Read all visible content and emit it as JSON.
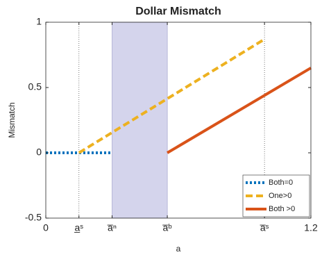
{
  "chart_data": {
    "type": "line",
    "title": "Dollar Mismatch",
    "x_label": "a",
    "y_label": "Mismatch",
    "xlim": [
      0,
      1.2
    ],
    "ylim": [
      -0.5,
      1
    ],
    "xticks": [
      0,
      {
        "value": 0.15,
        "label": "a̲ˢ"
      },
      {
        "value": 0.3,
        "label": "a̅ⁿ"
      },
      {
        "value": 0.55,
        "label": "a̅ᵇ"
      },
      {
        "value": 0.99,
        "label": "a̅ˢ"
      },
      1.2
    ],
    "yticks": [
      -0.5,
      0,
      0.5,
      1
    ],
    "shaded_region": [
      0.3,
      0.55
    ],
    "shade_color": "#d4d4ec",
    "reference_lines": [
      0.15,
      0.99
    ],
    "legend_position": "lower right",
    "series": [
      {
        "name": "Both=0",
        "color": "#0072bd",
        "style": "dotted",
        "x": [
          0,
          0.3
        ],
        "values": [
          0,
          0
        ]
      },
      {
        "name": "One>0",
        "color": "#edb120",
        "style": "dashed",
        "x": [
          0.15,
          0.99
        ],
        "values": [
          0,
          0.87
        ]
      },
      {
        "name": "Both >0",
        "color": "#d95319",
        "style": "solid",
        "x": [
          0.55,
          1.2
        ],
        "values": [
          0,
          0.65
        ]
      }
    ]
  }
}
